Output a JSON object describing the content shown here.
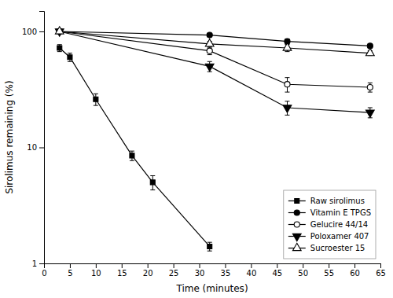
{
  "chart_data": {
    "type": "line",
    "x_label": "Time (minutes)",
    "y_label": "Sirolimus remaining (%)",
    "log": "y",
    "grid": false,
    "legend": "lower right",
    "xlim": [
      0,
      65
    ],
    "ylim": [
      1,
      150
    ],
    "xticks": [
      0,
      5,
      10,
      15,
      20,
      25,
      30,
      35,
      40,
      45,
      50,
      55,
      60,
      65
    ],
    "yticks": [
      1,
      10,
      100
    ],
    "series": [
      {
        "name": "Raw sirolimus",
        "color": "black",
        "marker": "square",
        "x": [
          3,
          5,
          10,
          17,
          21,
          32
        ],
        "values": [
          72,
          60,
          26,
          8.5,
          5.0,
          1.4
        ],
        "errors": [
          5,
          5,
          3,
          0.8,
          0.7,
          0.12
        ]
      },
      {
        "name": "Vitamin E TPGS",
        "color": "black",
        "marker": "circle",
        "x": [
          3,
          32,
          47,
          63
        ],
        "values": [
          100,
          93,
          82,
          75
        ],
        "errors": [
          0.5,
          3,
          4,
          3
        ]
      },
      {
        "name": "Gelucire 44/14",
        "color": "black",
        "marker": "circle-open",
        "x": [
          3,
          32,
          47,
          63
        ],
        "values": [
          100,
          68,
          35,
          33
        ],
        "errors": [
          0.5,
          5,
          5,
          3
        ]
      },
      {
        "name": "Poloxamer 407",
        "color": "black",
        "marker": "triangle-down",
        "x": [
          3,
          32,
          47,
          63
        ],
        "values": [
          100,
          50,
          22,
          20
        ],
        "errors": [
          0.5,
          5,
          3,
          2
        ]
      },
      {
        "name": "Sucroester 15",
        "color": "black",
        "marker": "triangle-up-open",
        "x": [
          3,
          32,
          47,
          63
        ],
        "values": [
          100,
          78,
          72,
          65
        ],
        "errors": [
          0.5,
          4,
          5,
          3
        ]
      }
    ]
  }
}
